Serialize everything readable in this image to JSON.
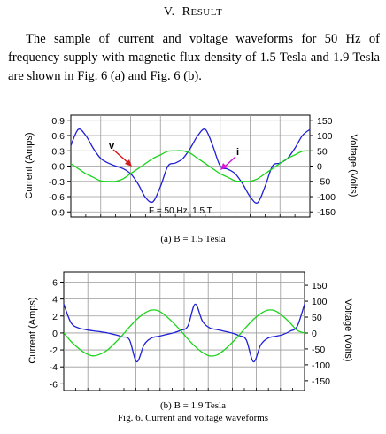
{
  "section": {
    "number": "V.",
    "title_first": "R",
    "title_rest": "ESULT"
  },
  "paragraph": "The sample of current and voltage waveforms for 50 Hz of frequency supply with magnetic flux density of 1.5 Tesla and 1.9 Tesla are shown in Fig. 6 (a) and Fig. 6 (b).",
  "figure_caption": "Fig. 6. Current and voltage waveforms",
  "chart_data": [
    {
      "type": "line",
      "subfigure_caption": "(a)  B = 1.5 Tesla",
      "ylabel_left": "Current (Amps)",
      "ylabel_right": "Voltage (Volts)",
      "left_ticks": [
        "0.9",
        "0.6",
        "0.3",
        "0.0",
        "-0.3",
        "-0.6",
        "-0.9"
      ],
      "right_ticks": [
        "150",
        "100",
        "50",
        "0",
        "-50",
        "-100",
        "-150"
      ],
      "ylim_left": [
        -1.0,
        1.0
      ],
      "ylim_right": [
        -166.7,
        166.7
      ],
      "annotations": [
        {
          "text": "v"
        },
        {
          "text": "i"
        },
        {
          "text": "F = 50 Hz, 1.5 T"
        }
      ],
      "series": [
        {
          "color": "#1f1fd6",
          "axis": "left",
          "values": [
            0.4,
            0.72,
            0.6,
            0.35,
            0.15,
            0.06,
            0.0,
            -0.05,
            -0.15,
            -0.35,
            -0.62,
            -0.7,
            -0.4,
            0.0,
            0.06,
            0.15,
            0.35,
            0.6,
            0.72,
            0.4,
            0.0,
            -0.06,
            -0.15,
            -0.35,
            -0.6,
            -0.72,
            -0.4,
            0.0,
            0.06,
            0.15,
            0.35,
            0.6,
            0.72
          ]
        },
        {
          "color": "#19d419",
          "axis": "left",
          "values": [
            0.05,
            -0.05,
            -0.15,
            -0.22,
            -0.29,
            -0.3,
            -0.3,
            -0.25,
            -0.15,
            -0.05,
            0.05,
            0.15,
            0.22,
            0.29,
            0.3,
            0.3,
            0.25,
            0.15,
            0.05,
            -0.05,
            -0.15,
            -0.22,
            -0.29,
            -0.3,
            -0.3,
            -0.25,
            -0.15,
            -0.05,
            0.05,
            0.15,
            0.22,
            0.29,
            0.3
          ]
        }
      ]
    },
    {
      "type": "line",
      "subfigure_caption": "(b)  B = 1.9 Tesla",
      "ylabel_left": "Current (Amps)",
      "ylabel_right": "Voltage (Volts)",
      "left_ticks": [
        "6",
        "4",
        "2",
        "0",
        "-2",
        "-4",
        "-6"
      ],
      "right_ticks": [
        "150",
        "100",
        "50",
        "0",
        "-50",
        "-100",
        "-150"
      ],
      "ylim_left": [
        -6.8,
        7.2
      ],
      "ylim_right": [
        -181,
        192
      ],
      "series": [
        {
          "color": "#1f1fd6",
          "axis": "left",
          "values": [
            3.4,
            1.2,
            0.6,
            0.4,
            0.25,
            0.15,
            0.0,
            -0.2,
            -0.45,
            -0.8,
            -3.4,
            -1.4,
            -0.6,
            -0.4,
            -0.2,
            0.0,
            0.3,
            0.8,
            3.4,
            1.4,
            0.6,
            0.4,
            0.2,
            0.0,
            -0.3,
            -0.8,
            -3.4,
            -1.4,
            -0.6,
            -0.4,
            -0.2,
            0.2,
            0.8,
            3.4
          ]
        },
        {
          "color": "#19d419",
          "axis": "left",
          "values": [
            0.0,
            -1.0,
            -1.8,
            -2.4,
            -2.7,
            -2.5,
            -2.0,
            -1.2,
            -0.3,
            0.7,
            1.6,
            2.3,
            2.7,
            2.6,
            2.0,
            1.2,
            0.3,
            -0.7,
            -1.6,
            -2.3,
            -2.7,
            -2.6,
            -2.0,
            -1.2,
            -0.3,
            0.7,
            1.6,
            2.3,
            2.7,
            2.6,
            2.0,
            1.2,
            0.3,
            0.0
          ]
        }
      ]
    }
  ]
}
